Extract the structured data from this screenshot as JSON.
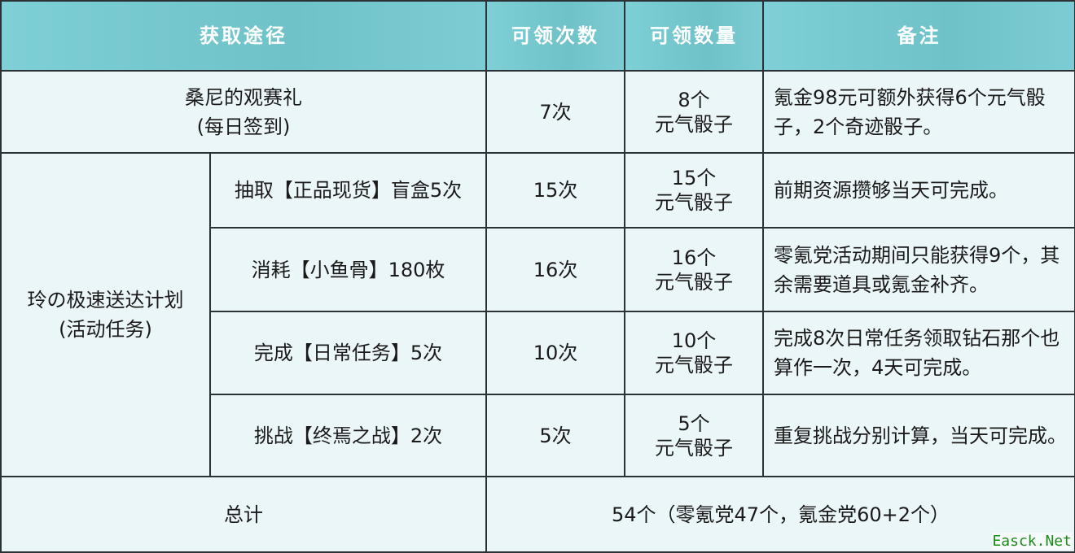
{
  "header": [
    "获取途径",
    "可领次数",
    "可领数量",
    "备注"
  ],
  "row_daily": {
    "source": [
      "桑尼的观赛礼",
      "(每日签到)"
    ],
    "times": "7次",
    "amount": [
      "8个",
      "元气骰子"
    ],
    "note": "氪金98元可额外获得6个元气骰子，2个奇迹骰子。"
  },
  "event_group": {
    "label": [
      "玲の极速送达计划",
      "(活动任务)"
    ],
    "rows": [
      {
        "task": "抽取【正品现货】盲盒5次",
        "times": "15次",
        "amount": [
          "15个",
          "元气骰子"
        ],
        "note": "前期资源攒够当天可完成。"
      },
      {
        "task": "消耗【小鱼骨】180枚",
        "times": "16次",
        "amount": [
          "16个",
          "元气骰子"
        ],
        "note": "零氪党活动期间只能获得9个，其余需要道具或氪金补齐。"
      },
      {
        "task": "完成【日常任务】5次",
        "times": "10次",
        "amount": [
          "10个",
          "元气骰子"
        ],
        "note": "完成8次日常任务领取钻石那个也算作一次，4天可完成。"
      },
      {
        "task": "挑战【终焉之战】2次",
        "times": "5次",
        "amount": [
          "5个",
          "元气骰子"
        ],
        "note": "重复挑战分别计算，当天可完成。"
      }
    ]
  },
  "total": {
    "label": "总计",
    "value": "54个（零氪党47个，氪金党60+2个）"
  },
  "watermark": "Easck.Net"
}
